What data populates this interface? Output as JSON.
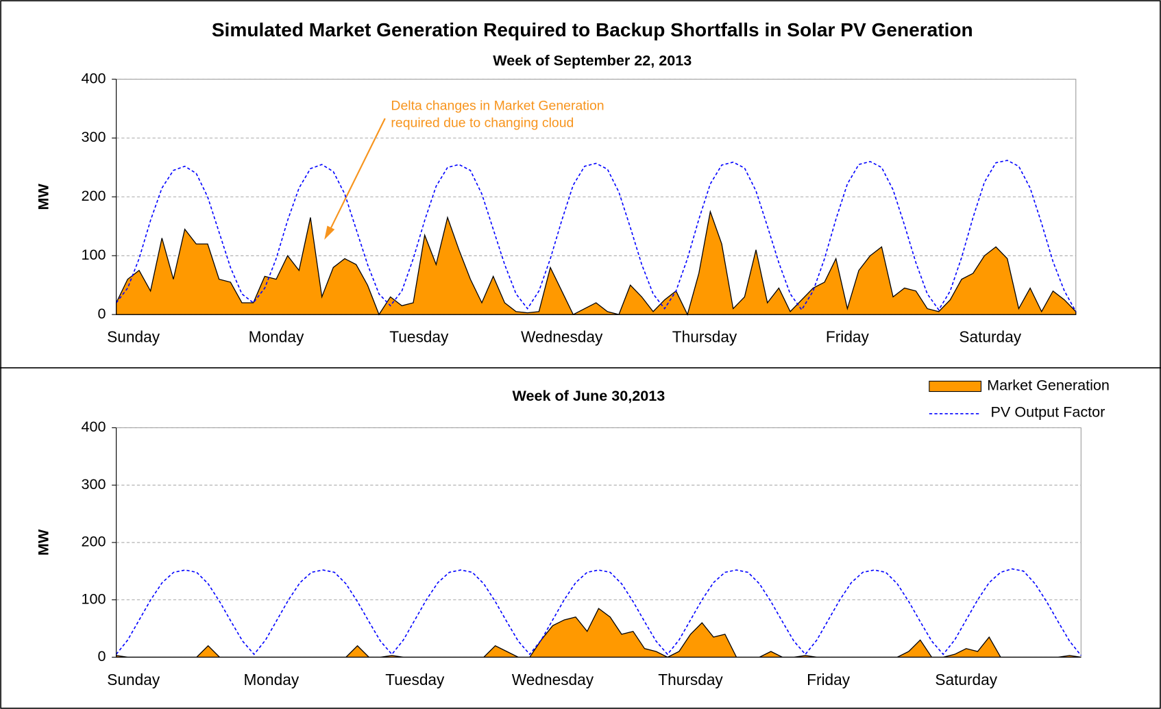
{
  "chart_data": [
    {
      "type": "area_line",
      "title": "Simulated Market Generation Required to Backup Shortfalls in Solar PV Generation",
      "subtitle": "Week of September 22, 2013",
      "ylabel": "MW",
      "annotation": [
        "Delta changes in Market Generation",
        "required due to changing cloud"
      ],
      "annotation_color": "#f7941d",
      "x": [
        0,
        2,
        4,
        6,
        8,
        10,
        12,
        14,
        16,
        18,
        20,
        22,
        24,
        26,
        28,
        30,
        32,
        34,
        36,
        38,
        40,
        42,
        44,
        46,
        48,
        50,
        52,
        54,
        56,
        58,
        60,
        62,
        64,
        66,
        68,
        70,
        72,
        74,
        76,
        78,
        80,
        82,
        84,
        86,
        88,
        90,
        92,
        94,
        96,
        98,
        100,
        102,
        104,
        106,
        108,
        110,
        112,
        114,
        116,
        118,
        120,
        122,
        124,
        126,
        128,
        130,
        132,
        134,
        136,
        138,
        140,
        142,
        144,
        146,
        148,
        150,
        152,
        154,
        156,
        158,
        160,
        162,
        164,
        166,
        168
      ],
      "xlim": [
        0,
        168
      ],
      "xticks": [
        {
          "value": 3,
          "label": "Sunday"
        },
        {
          "value": 28,
          "label": "Monday"
        },
        {
          "value": 53,
          "label": "Tuesday"
        },
        {
          "value": 78,
          "label": "Wednesday"
        },
        {
          "value": 103,
          "label": "Thursday"
        },
        {
          "value": 128,
          "label": "Friday"
        },
        {
          "value": 153,
          "label": "Saturday"
        }
      ],
      "ylim": [
        0,
        400
      ],
      "yticks": [
        0,
        100,
        200,
        300,
        400
      ],
      "grid": true,
      "series": [
        {
          "kind": "area",
          "color": "#ff9900",
          "values": [
            20,
            60,
            75,
            40,
            130,
            60,
            145,
            120,
            120,
            60,
            55,
            20,
            20,
            65,
            60,
            100,
            75,
            165,
            30,
            80,
            95,
            85,
            50,
            0,
            30,
            15,
            20,
            135,
            85,
            165,
            110,
            60,
            20,
            65,
            20,
            5,
            3,
            5,
            80,
            40,
            0,
            10,
            20,
            5,
            0,
            50,
            30,
            5,
            25,
            40,
            0,
            70,
            175,
            120,
            10,
            30,
            110,
            20,
            45,
            5,
            25,
            45,
            55,
            95,
            10,
            75,
            100,
            115,
            30,
            45,
            40,
            10,
            5,
            25,
            60,
            70,
            100,
            115,
            95,
            10,
            45,
            5,
            40,
            25,
            5
          ]
        },
        {
          "kind": "line",
          "color": "#0000ff",
          "values": [
            20,
            45,
            95,
            160,
            215,
            245,
            252,
            240,
            200,
            140,
            80,
            35,
            20,
            45,
            95,
            160,
            215,
            248,
            255,
            243,
            205,
            145,
            85,
            35,
            15,
            40,
            95,
            160,
            218,
            250,
            255,
            245,
            205,
            145,
            85,
            35,
            10,
            40,
            95,
            160,
            220,
            252,
            257,
            247,
            208,
            148,
            85,
            35,
            10,
            40,
            95,
            162,
            222,
            254,
            259,
            249,
            210,
            150,
            88,
            35,
            8,
            40,
            95,
            162,
            222,
            255,
            260,
            250,
            212,
            152,
            88,
            35,
            8,
            40,
            97,
            165,
            225,
            258,
            262,
            252,
            215,
            155,
            90,
            40,
            5
          ]
        }
      ]
    },
    {
      "type": "area_line",
      "subtitle": "Week of June 30,2013",
      "ylabel": "MW",
      "legend": "upper right",
      "x": [
        0,
        2,
        4,
        6,
        8,
        10,
        12,
        14,
        16,
        18,
        20,
        22,
        24,
        26,
        28,
        30,
        32,
        34,
        36,
        38,
        40,
        42,
        44,
        46,
        48,
        50,
        52,
        54,
        56,
        58,
        60,
        62,
        64,
        66,
        68,
        70,
        72,
        74,
        76,
        78,
        80,
        82,
        84,
        86,
        88,
        90,
        92,
        94,
        96,
        98,
        100,
        102,
        104,
        106,
        108,
        110,
        112,
        114,
        116,
        118,
        120,
        122,
        124,
        126,
        128,
        130,
        132,
        134,
        136,
        138,
        140,
        142,
        144,
        146,
        148,
        150,
        152,
        154,
        156,
        158,
        160,
        162,
        164,
        166,
        168
      ],
      "xlim": [
        0,
        168
      ],
      "xticks": [
        {
          "value": 3,
          "label": "Sunday"
        },
        {
          "value": 27,
          "label": "Monday"
        },
        {
          "value": 52,
          "label": "Tuesday"
        },
        {
          "value": 76,
          "label": "Wednesday"
        },
        {
          "value": 100,
          "label": "Thursday"
        },
        {
          "value": 124,
          "label": "Friday"
        },
        {
          "value": 148,
          "label": "Saturday"
        }
      ],
      "ylim": [
        0,
        400
      ],
      "yticks": [
        0,
        100,
        200,
        300,
        400
      ],
      "grid": true,
      "series": [
        {
          "kind": "area",
          "name": "Market Generation",
          "color": "#ff9900",
          "values": [
            3,
            0,
            0,
            0,
            0,
            0,
            0,
            0,
            20,
            0,
            0,
            0,
            0,
            0,
            0,
            0,
            0,
            0,
            0,
            0,
            0,
            20,
            0,
            0,
            3,
            0,
            0,
            0,
            0,
            0,
            0,
            0,
            0,
            20,
            10,
            0,
            0,
            30,
            55,
            65,
            70,
            45,
            85,
            70,
            40,
            45,
            15,
            10,
            0,
            10,
            40,
            60,
            35,
            40,
            0,
            0,
            0,
            10,
            0,
            0,
            3,
            0,
            0,
            0,
            0,
            0,
            0,
            0,
            0,
            10,
            30,
            0,
            0,
            5,
            15,
            10,
            35,
            0,
            0,
            0,
            0,
            0,
            0,
            3,
            0
          ]
        },
        {
          "kind": "line",
          "name": "PV Output Factor",
          "color": "#0000ff",
          "values": [
            5,
            30,
            65,
            100,
            130,
            148,
            152,
            148,
            128,
            97,
            62,
            28,
            5,
            30,
            65,
            100,
            130,
            148,
            152,
            148,
            128,
            97,
            62,
            28,
            5,
            30,
            65,
            100,
            130,
            148,
            152,
            148,
            128,
            97,
            62,
            28,
            5,
            30,
            65,
            100,
            130,
            148,
            152,
            148,
            128,
            97,
            62,
            28,
            5,
            30,
            65,
            100,
            130,
            148,
            152,
            148,
            128,
            97,
            62,
            28,
            5,
            30,
            65,
            100,
            130,
            148,
            152,
            148,
            128,
            97,
            62,
            28,
            5,
            30,
            65,
            100,
            130,
            148,
            154,
            150,
            128,
            97,
            62,
            28,
            3
          ]
        }
      ]
    }
  ]
}
